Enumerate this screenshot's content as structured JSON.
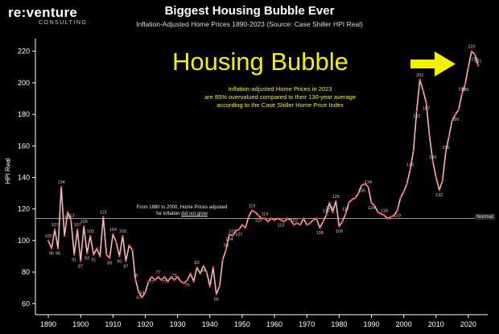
{
  "brand": {
    "name": "re:venture",
    "sub": "CONSULTING"
  },
  "chart_data": {
    "type": "line",
    "title": "Biggest Housing Bubble Ever",
    "subtitle": "Inflation-Adjusted Home Prices 1890-2023 (Source: Case Shiller HPI Real)",
    "xlabel": "",
    "ylabel": "HPI Real",
    "xlim": [
      1886,
      2026
    ],
    "ylim": [
      53,
      228
    ],
    "xticks": [
      1890,
      1900,
      1910,
      1920,
      1930,
      1940,
      1950,
      1960,
      1970,
      1980,
      1990,
      2000,
      2010,
      2020
    ],
    "yticks": [
      60,
      80,
      100,
      120,
      140,
      160,
      180,
      200,
      220
    ],
    "grid": false,
    "line_color": "#f2b8b8",
    "point_color": "#ff3b30",
    "label_color": "#cccccc",
    "reference_line": {
      "value": 114,
      "label": "Normal",
      "color": "#aaaaaa"
    },
    "annotations": {
      "headline": "Housing Bubble",
      "box_lines": [
        "Inflation-adjusted Home Prices in 2023",
        "are 85% overvalued compared to their 130-year average",
        "according to the Case Shiller Home Price Index"
      ],
      "note_lines": [
        "From 1890 to 2000, Home Prices adjusted",
        "for inflation"
      ],
      "note_underline": "did not grow"
    },
    "points": [
      [
        1890,
        100
      ],
      [
        1891,
        95
      ],
      [
        1892,
        107
      ],
      [
        1893,
        95
      ],
      [
        1894,
        134
      ],
      [
        1895,
        103
      ],
      [
        1896,
        118
      ],
      [
        1897,
        113
      ],
      [
        1898,
        91
      ],
      [
        1899,
        107
      ],
      [
        1900,
        87
      ],
      [
        1901,
        109
      ],
      [
        1902,
        92
      ],
      [
        1903,
        103
      ],
      [
        1904,
        91
      ],
      [
        1905,
        95
      ],
      [
        1906,
        90
      ],
      [
        1907,
        115
      ],
      [
        1908,
        91
      ],
      [
        1909,
        89
      ],
      [
        1910,
        104
      ],
      [
        1911,
        99
      ],
      [
        1912,
        90
      ],
      [
        1913,
        103
      ],
      [
        1914,
        87
      ],
      [
        1915,
        97
      ],
      [
        1916,
        94
      ],
      [
        1917,
        75
      ],
      [
        1918,
        67
      ],
      [
        1919,
        64
      ],
      [
        1920,
        67
      ],
      [
        1921,
        74
      ],
      [
        1922,
        77
      ],
      [
        1923,
        75
      ],
      [
        1924,
        77
      ],
      [
        1925,
        75
      ],
      [
        1926,
        77
      ],
      [
        1927,
        74
      ],
      [
        1928,
        77
      ],
      [
        1929,
        75
      ],
      [
        1930,
        77
      ],
      [
        1931,
        74
      ],
      [
        1932,
        73
      ],
      [
        1933,
        75
      ],
      [
        1934,
        79
      ],
      [
        1935,
        74
      ],
      [
        1936,
        83
      ],
      [
        1937,
        79
      ],
      [
        1938,
        84
      ],
      [
        1939,
        80
      ],
      [
        1940,
        71
      ],
      [
        1941,
        83
      ],
      [
        1942,
        66
      ],
      [
        1943,
        71
      ],
      [
        1944,
        88
      ],
      [
        1945,
        94
      ],
      [
        1946,
        104
      ],
      [
        1947,
        103
      ],
      [
        1948,
        106
      ],
      [
        1949,
        107
      ],
      [
        1950,
        110
      ],
      [
        1951,
        108
      ],
      [
        1952,
        115
      ],
      [
        1953,
        119
      ],
      [
        1954,
        118
      ],
      [
        1955,
        116
      ],
      [
        1956,
        114
      ],
      [
        1957,
        114
      ],
      [
        1958,
        112
      ],
      [
        1959,
        114
      ],
      [
        1960,
        113
      ],
      [
        1961,
        114
      ],
      [
        1962,
        113
      ],
      [
        1963,
        112
      ],
      [
        1964,
        114
      ],
      [
        1965,
        113
      ],
      [
        1966,
        110
      ],
      [
        1967,
        111
      ],
      [
        1968,
        110
      ],
      [
        1969,
        114
      ],
      [
        1970,
        110
      ],
      [
        1971,
        111
      ],
      [
        1972,
        113
      ],
      [
        1973,
        114
      ],
      [
        1974,
        108
      ],
      [
        1975,
        112
      ],
      [
        1976,
        116
      ],
      [
        1977,
        124
      ],
      [
        1978,
        118
      ],
      [
        1979,
        125
      ],
      [
        1980,
        109
      ],
      [
        1981,
        112
      ],
      [
        1982,
        117
      ],
      [
        1983,
        124
      ],
      [
        1984,
        126
      ],
      [
        1985,
        127
      ],
      [
        1986,
        130
      ],
      [
        1987,
        135
      ],
      [
        1988,
        136
      ],
      [
        1989,
        134
      ],
      [
        1990,
        124
      ],
      [
        1991,
        122
      ],
      [
        1992,
        118
      ],
      [
        1993,
        117
      ],
      [
        1994,
        116
      ],
      [
        1995,
        114
      ],
      [
        1996,
        115
      ],
      [
        1997,
        116
      ],
      [
        1998,
        119
      ],
      [
        1999,
        127
      ],
      [
        2000,
        131
      ],
      [
        2001,
        136
      ],
      [
        2002,
        145
      ],
      [
        2003,
        157
      ],
      [
        2004,
        182
      ],
      [
        2005,
        202
      ],
      [
        2006,
        195
      ],
      [
        2007,
        187
      ],
      [
        2008,
        166
      ],
      [
        2009,
        150
      ],
      [
        2010,
        140
      ],
      [
        2011,
        132
      ],
      [
        2012,
        138
      ],
      [
        2013,
        156
      ],
      [
        2014,
        166
      ],
      [
        2015,
        176
      ],
      [
        2016,
        180
      ],
      [
        2017,
        183
      ],
      [
        2018,
        193
      ],
      [
        2019,
        199
      ],
      [
        2020,
        210
      ],
      [
        2021,
        220
      ],
      [
        2022,
        218
      ],
      [
        2023,
        211
      ]
    ],
    "data_labels": [
      [
        1890,
        100
      ],
      [
        1891,
        95
      ],
      [
        1892,
        107
      ],
      [
        1893,
        95
      ],
      [
        1894,
        134
      ],
      [
        1896,
        118
      ],
      [
        1897,
        113
      ],
      [
        1898,
        91
      ],
      [
        1899,
        107
      ],
      [
        1900,
        87
      ],
      [
        1901,
        109
      ],
      [
        1902,
        92
      ],
      [
        1903,
        103
      ],
      [
        1904,
        91
      ],
      [
        1907,
        115
      ],
      [
        1909,
        89
      ],
      [
        1910,
        104
      ],
      [
        1912,
        90
      ],
      [
        1913,
        103
      ],
      [
        1914,
        87
      ],
      [
        1917,
        75
      ],
      [
        1918,
        67
      ],
      [
        1919,
        64
      ],
      [
        1922,
        77
      ],
      [
        1924,
        77
      ],
      [
        1926,
        77
      ],
      [
        1929,
        75
      ],
      [
        1933,
        75
      ],
      [
        1936,
        83
      ],
      [
        1938,
        84
      ],
      [
        1940,
        71
      ],
      [
        1942,
        66
      ],
      [
        1945,
        94
      ],
      [
        1946,
        104
      ],
      [
        1947,
        103
      ],
      [
        1949,
        107
      ],
      [
        1953,
        119
      ],
      [
        1955,
        116
      ],
      [
        1957,
        114
      ],
      [
        1962,
        113
      ],
      [
        1966,
        110
      ],
      [
        1974,
        108
      ],
      [
        1976,
        116
      ],
      [
        1977,
        124
      ],
      [
        1979,
        125
      ],
      [
        1980,
        109
      ],
      [
        1982,
        117
      ],
      [
        1987,
        135
      ],
      [
        1989,
        134
      ],
      [
        1990,
        124
      ],
      [
        1994,
        116
      ],
      [
        1998,
        119
      ],
      [
        2002,
        145
      ],
      [
        2004,
        182
      ],
      [
        2005,
        202
      ],
      [
        2007,
        187
      ],
      [
        2009,
        150
      ],
      [
        2011,
        132
      ],
      [
        2013,
        156
      ],
      [
        2016,
        180
      ],
      [
        2018,
        193
      ],
      [
        2019,
        199
      ],
      [
        2021,
        220
      ],
      [
        2022,
        218
      ],
      [
        2023,
        211
      ]
    ]
  }
}
